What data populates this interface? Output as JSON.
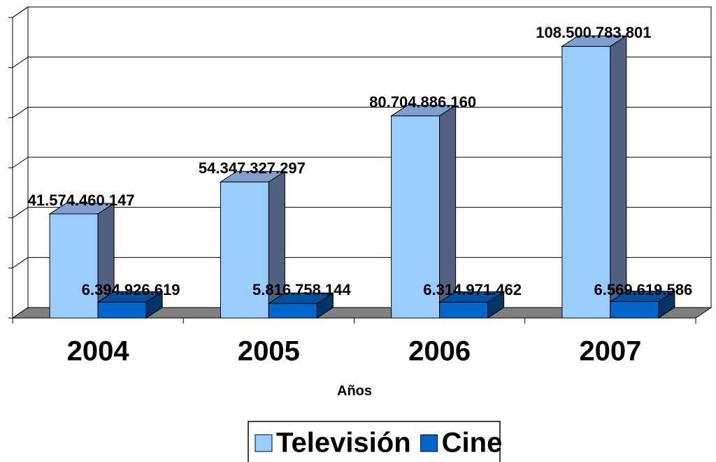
{
  "chart_data": {
    "type": "bar3d",
    "x_label": "Años",
    "categories": [
      "2004",
      "2005",
      "2006",
      "2007"
    ],
    "series": [
      {
        "name": "Televisión",
        "color": "#99ccff",
        "values": [
          41574460147,
          54347327297,
          80704886160,
          108500783801
        ],
        "value_labels": [
          "41.574.460.147",
          "54.347.327.297",
          "80.704.886.160",
          "108.500.783.801"
        ]
      },
      {
        "name": "Cine",
        "color": "#0066cc",
        "values": [
          6394926619,
          5816758144,
          6314971462,
          6569619586
        ],
        "value_labels": [
          "6.394.926.619",
          "5.816.758.144",
          "6.314.971.462",
          "6.569.619.586"
        ]
      }
    ],
    "ylim": [
      0,
      120000000000
    ],
    "yticks": [
      0,
      20000000000,
      40000000000,
      60000000000,
      80000000000,
      100000000000,
      120000000000
    ],
    "grid": true
  }
}
